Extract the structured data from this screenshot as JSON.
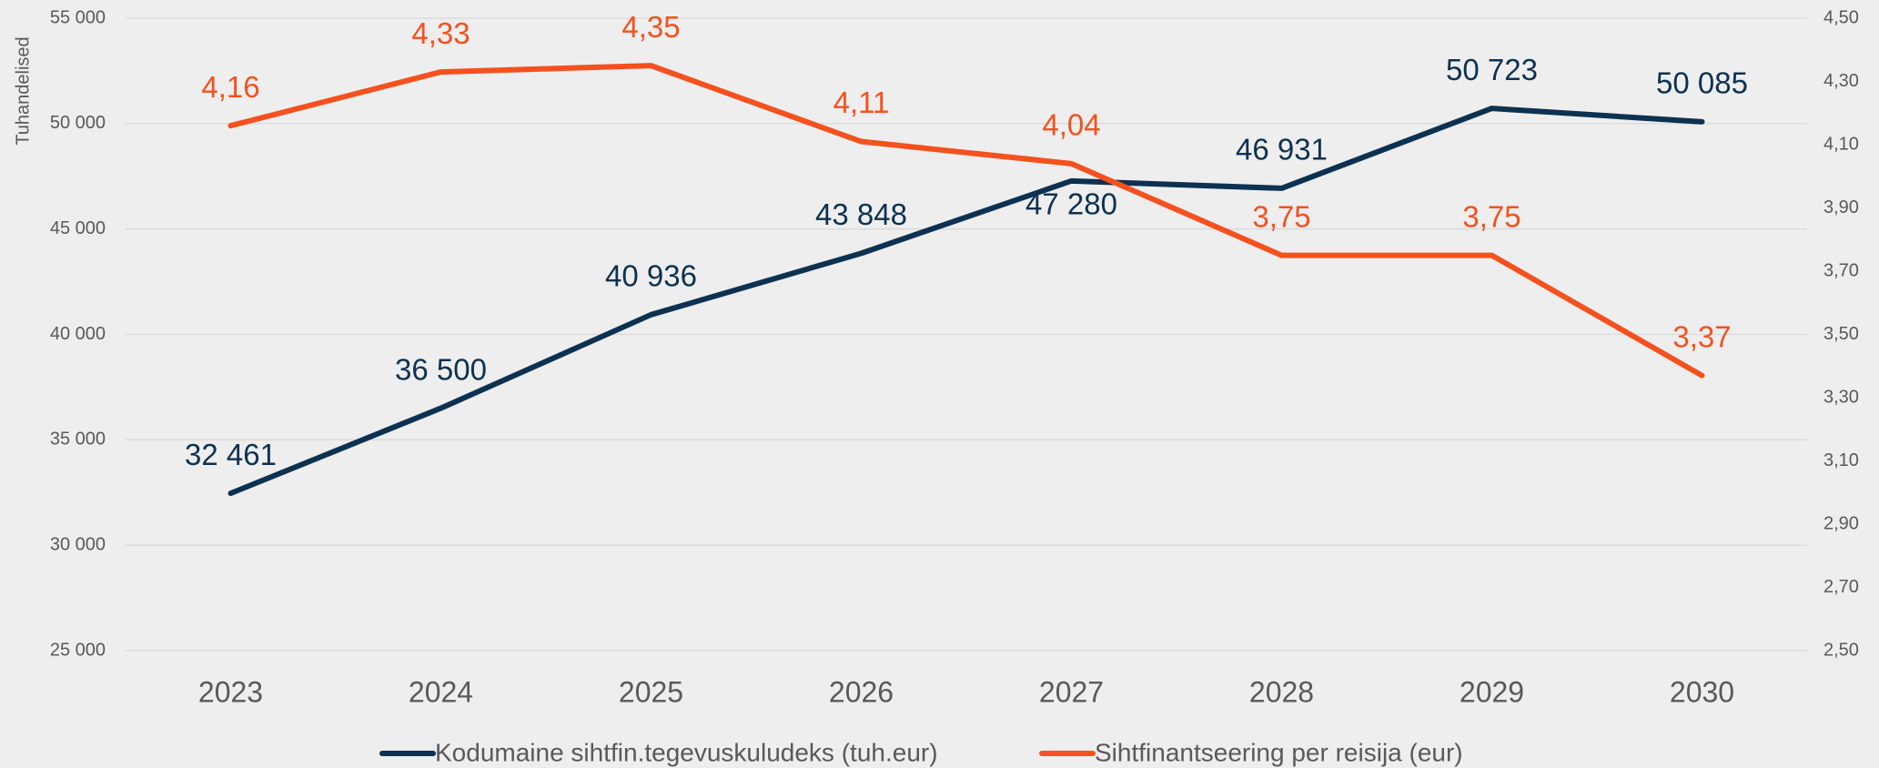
{
  "chart_data": {
    "type": "line",
    "y_label": "Tuhandelised",
    "categories": [
      "2023",
      "2024",
      "2025",
      "2026",
      "2027",
      "2028",
      "2029",
      "2030"
    ],
    "series": [
      {
        "name": "Kodumaine sihtfin.tegevuskuludeks (tuh.eur)",
        "color": "#0d3151",
        "values": [
          32461,
          36500,
          40936,
          43848,
          47280,
          46931,
          50723,
          50085
        ],
        "value_labels": [
          "32 461",
          "36 500",
          "40 936",
          "43 848",
          "47 280",
          "46 931",
          "50 723",
          "50 085"
        ]
      },
      {
        "name": "Sihtfinantseering per reisija (eur)",
        "color": "#f4511e",
        "axis": "y2",
        "values": [
          4.16,
          4.33,
          4.35,
          4.11,
          4.04,
          3.75,
          3.75,
          3.37
        ],
        "value_labels": [
          "4,16",
          "4,33",
          "4,35",
          "4,11",
          "4,04",
          "3,75",
          "3,75",
          "3,37"
        ]
      }
    ],
    "ylim": [
      25000,
      55000
    ],
    "yticks": [
      {
        "value": 25000,
        "label": "25 000"
      },
      {
        "value": 30000,
        "label": "30 000"
      },
      {
        "value": 35000,
        "label": "35 000"
      },
      {
        "value": 40000,
        "label": "40 000"
      },
      {
        "value": 45000,
        "label": "45 000"
      },
      {
        "value": 50000,
        "label": "50 000"
      },
      {
        "value": 55000,
        "label": "55 000"
      }
    ],
    "y2lim": [
      2.5,
      4.5
    ],
    "y2ticks": [
      {
        "value": 2.5,
        "label": "2,50"
      },
      {
        "value": 2.7,
        "label": "2,70"
      },
      {
        "value": 2.9,
        "label": "2,90"
      },
      {
        "value": 3.1,
        "label": "3,10"
      },
      {
        "value": 3.3,
        "label": "3,30"
      },
      {
        "value": 3.5,
        "label": "3,50"
      },
      {
        "value": 3.7,
        "label": "3,70"
      },
      {
        "value": 3.9,
        "label": "3,90"
      },
      {
        "value": 4.1,
        "label": "4,10"
      },
      {
        "value": 4.3,
        "label": "4,30"
      },
      {
        "value": 4.5,
        "label": "4,50"
      }
    ],
    "grid": true,
    "legend": "bottom"
  }
}
